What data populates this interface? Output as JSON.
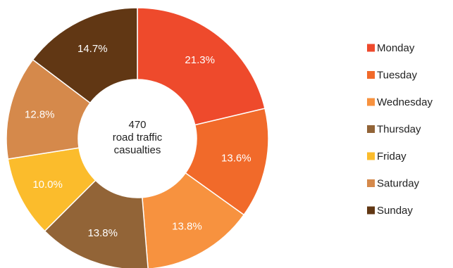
{
  "chart_data": {
    "type": "pie",
    "donut": true,
    "center_text": {
      "value": "470",
      "line1": "road traffic",
      "line2": "casualties"
    },
    "categories": [
      "Monday",
      "Tuesday",
      "Wednesday",
      "Thursday",
      "Friday",
      "Saturday",
      "Sunday"
    ],
    "values": [
      21.3,
      13.6,
      13.8,
      13.8,
      10.0,
      12.8,
      14.7
    ],
    "value_labels": [
      "21.3%",
      "13.6%",
      "13.8%",
      "13.8%",
      "10.0%",
      "12.8%",
      "14.7%"
    ],
    "colors": [
      "#ee4a2c",
      "#f16a2a",
      "#f7923f",
      "#926437",
      "#fbbc2c",
      "#d5894b",
      "#613714"
    ],
    "legend_position": "right",
    "start_angle": "top, clockwise"
  }
}
